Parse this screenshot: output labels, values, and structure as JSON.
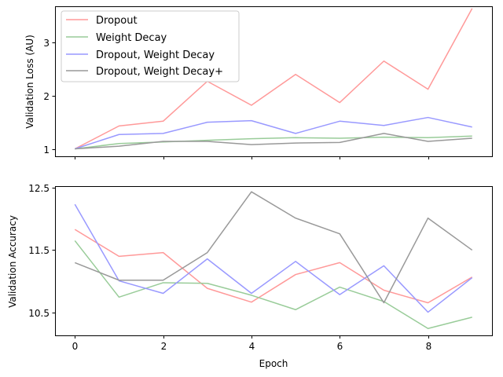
{
  "chart_data": [
    {
      "type": "line",
      "ylabel": "Validation Loss (AU)",
      "xlabel": "",
      "x": [
        0,
        1,
        2,
        3,
        4,
        5,
        6,
        7,
        8,
        9
      ],
      "xlim": [
        -0.45,
        9.45
      ],
      "ylim": [
        0.86,
        3.68
      ],
      "yticks": [
        1,
        2,
        3
      ],
      "ytick_labels": [
        "1",
        "2",
        "3"
      ],
      "xticks": [
        0,
        2,
        4,
        6,
        8
      ],
      "xtick_labels": [],
      "legend_location": "top-left",
      "series": [
        {
          "name": "Dropout",
          "color": "#ff9999",
          "values": [
            1.0,
            1.43,
            1.52,
            2.27,
            1.82,
            2.4,
            1.87,
            2.65,
            2.12,
            3.64
          ]
        },
        {
          "name": "Weight Decay",
          "color": "#99cc99",
          "values": [
            1.0,
            1.1,
            1.13,
            1.16,
            1.19,
            1.21,
            1.2,
            1.22,
            1.21,
            1.24
          ]
        },
        {
          "name": "Dropout, Weight Decay",
          "color": "#9999ff",
          "values": [
            1.0,
            1.27,
            1.29,
            1.5,
            1.53,
            1.29,
            1.52,
            1.44,
            1.59,
            1.41
          ]
        },
        {
          "name": "Dropout, Weight Decay+",
          "color": "#999999",
          "values": [
            1.0,
            1.05,
            1.14,
            1.14,
            1.08,
            1.11,
            1.12,
            1.29,
            1.14,
            1.2
          ]
        }
      ]
    },
    {
      "type": "line",
      "ylabel": "Validation Accuracy",
      "xlabel": "Epoch",
      "x": [
        0,
        1,
        2,
        3,
        4,
        5,
        6,
        7,
        8,
        9
      ],
      "xlim": [
        -0.45,
        9.45
      ],
      "ylim": [
        10.14,
        12.52
      ],
      "yticks": [
        10.5,
        11.5,
        12.5
      ],
      "ytick_labels": [
        "10.5",
        "11.5",
        "12.5"
      ],
      "xticks": [
        0,
        2,
        4,
        6,
        8
      ],
      "xtick_labels": [
        "0",
        "2",
        "4",
        "6",
        "8"
      ],
      "series": [
        {
          "name": "Dropout",
          "color": "#ff9999",
          "values": [
            11.83,
            11.4,
            11.46,
            10.89,
            10.67,
            11.11,
            11.3,
            10.86,
            10.66,
            11.07
          ]
        },
        {
          "name": "Weight Decay",
          "color": "#99cc99",
          "values": [
            11.65,
            10.75,
            10.98,
            10.97,
            10.78,
            10.55,
            10.91,
            10.68,
            10.25,
            10.43
          ]
        },
        {
          "name": "Dropout, Weight Decay",
          "color": "#9999ff",
          "values": [
            12.23,
            11.01,
            10.81,
            11.36,
            10.81,
            11.32,
            10.79,
            11.25,
            10.51,
            11.06
          ]
        },
        {
          "name": "Dropout, Weight Decay+",
          "color": "#999999",
          "values": [
            11.3,
            11.02,
            11.02,
            11.46,
            12.43,
            12.01,
            11.76,
            10.66,
            12.01,
            11.5
          ]
        }
      ]
    }
  ]
}
